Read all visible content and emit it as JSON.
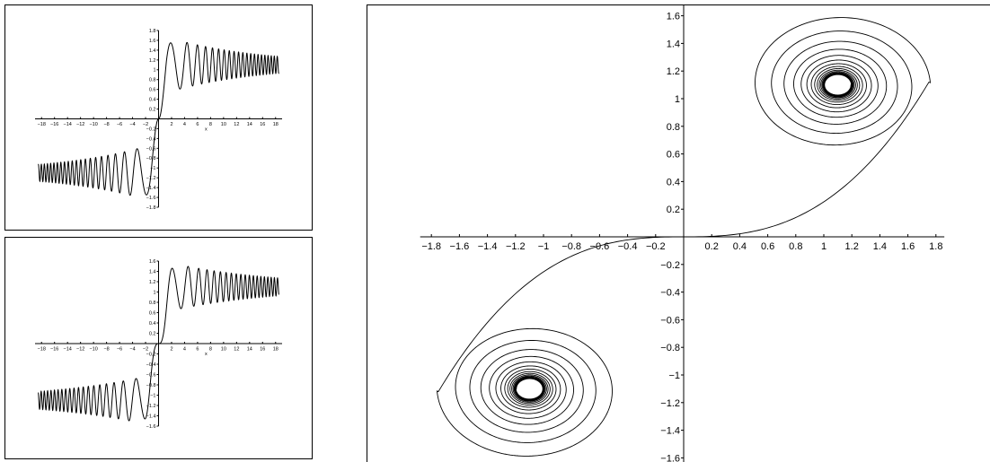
{
  "chart_data": [
    {
      "type": "line",
      "title": "",
      "xlabel": "x",
      "ylabel": "",
      "xlim": [
        -19,
        19
      ],
      "ylim": [
        -1.8,
        1.8
      ],
      "grid": false,
      "x_ticks": [
        -18,
        -16,
        -14,
        -12,
        -10,
        -8,
        -6,
        -4,
        -2,
        2,
        4,
        6,
        8,
        10,
        12,
        14,
        16,
        18
      ],
      "x_tick_labels": [
        "−18",
        "−16",
        "−14",
        "−12",
        "−10",
        "−8",
        "−6",
        "−4",
        "−2",
        "2",
        "4",
        "6",
        "8",
        "10",
        "12",
        "14",
        "16",
        "18"
      ],
      "y_ticks": [
        -1.8,
        -1.6,
        -1.4,
        -1.2,
        -1,
        -0.8,
        -0.6,
        -0.4,
        -0.2,
        0.2,
        0.4,
        0.6,
        0.8,
        1,
        1.2,
        1.4,
        1.6,
        1.8
      ],
      "y_tick_labels": [
        "−1.8",
        "−1.6",
        "−1.4",
        "−1.2",
        "−1",
        "−0.8",
        "−0.6",
        "−0.4",
        "−0.2",
        "0.2",
        "0.4",
        "0.6",
        "0.8",
        "1",
        "1.2",
        "1.4",
        "1.6",
        "1.8"
      ],
      "series": [
        {
          "x": [
            -18.5,
            -12,
            -8,
            -6,
            -4.8,
            -3.3,
            -2.5,
            -1.5,
            0,
            1.5,
            2.5,
            3.3,
            4.8,
            6,
            8,
            12,
            18.5
          ],
          "y": [
            -1.1,
            -1.1,
            -1.13,
            -1.2,
            -0.75,
            -1.5,
            -1.72,
            -1.2,
            0,
            1.2,
            1.72,
            1.5,
            0.75,
            1.2,
            1.13,
            1.1,
            1.1
          ]
        }
      ]
    },
    {
      "type": "line",
      "title": "",
      "xlabel": "x",
      "ylabel": "",
      "xlim": [
        -19,
        19
      ],
      "ylim": [
        -1.6,
        1.6
      ],
      "grid": false,
      "x_ticks": [
        -18,
        -16,
        -14,
        -12,
        -10,
        -8,
        -6,
        -4,
        -2,
        2,
        4,
        6,
        8,
        10,
        12,
        14,
        16,
        18
      ],
      "x_tick_labels": [
        "−18",
        "−16",
        "−14",
        "−12",
        "−10",
        "−8",
        "−6",
        "−4",
        "−2",
        "2",
        "4",
        "6",
        "8",
        "10",
        "12",
        "14",
        "16",
        "18"
      ],
      "y_ticks": [
        -1.6,
        -1.4,
        -1.2,
        -1,
        -0.8,
        -0.6,
        -0.4,
        -0.2,
        0.2,
        0.4,
        0.6,
        0.8,
        1,
        1.2,
        1.4,
        1.6
      ],
      "y_tick_labels": [
        "−1.6",
        "−1.4",
        "−1.2",
        "−1",
        "−0.8",
        "−0.6",
        "−0.4",
        "−0.2",
        "0.2",
        "0.4",
        "0.6",
        "0.8",
        "1",
        "1.2",
        "1.4",
        "1.6"
      ],
      "series": [
        {
          "x": [
            -18.5,
            -12,
            -8,
            -6,
            -4.5,
            -3,
            -2,
            -1,
            0,
            1,
            2,
            3,
            4.5,
            6,
            8,
            12,
            18.5
          ],
          "y": [
            -1.1,
            -1.1,
            -1.12,
            -1.2,
            -0.8,
            -1.55,
            -1.2,
            -0.15,
            0,
            0.15,
            1.2,
            1.55,
            0.8,
            1.2,
            1.12,
            1.1,
            1.1
          ]
        }
      ]
    },
    {
      "type": "line",
      "title": "",
      "xlabel": "",
      "ylabel": "",
      "xlim": [
        -1.85,
        1.85
      ],
      "ylim": [
        -1.7,
        1.7
      ],
      "grid": false,
      "x_ticks": [
        -1.8,
        -1.6,
        -1.4,
        -1.2,
        -1,
        -0.8,
        -0.6,
        -0.4,
        -0.2,
        0.2,
        0.4,
        0.6,
        0.8,
        1,
        1.2,
        1.4,
        1.6,
        1.8
      ],
      "x_tick_labels": [
        "−1.8",
        "−1.6",
        "−1.4",
        "−1.2",
        "−1",
        "−0.8",
        "−0.6",
        "−0.4",
        "−0.2",
        "0.2",
        "0.4",
        "0.6",
        "0.8",
        "1",
        "1.2",
        "1.4",
        "1.6",
        "1.8"
      ],
      "y_ticks": [
        -1.6,
        -1.4,
        -1.2,
        -1,
        -0.8,
        -0.6,
        -0.4,
        -0.2,
        0.2,
        0.4,
        0.6,
        0.8,
        1,
        1.2,
        1.4,
        1.6
      ],
      "y_tick_labels": [
        "−1.6",
        "−1.4",
        "−1.2",
        "−1",
        "−0.8",
        "−0.6",
        "−0.4",
        "−0.2",
        "0.2",
        "0.4",
        "0.6",
        "0.8",
        "1",
        "1.2",
        "1.4",
        "1.6"
      ],
      "center_positive": [
        1.1,
        1.1
      ],
      "center_negative": [
        -1.1,
        -1.1
      ],
      "outer_extent": {
        "x_max": 1.75,
        "y_min_loop": 0.75
      }
    }
  ]
}
